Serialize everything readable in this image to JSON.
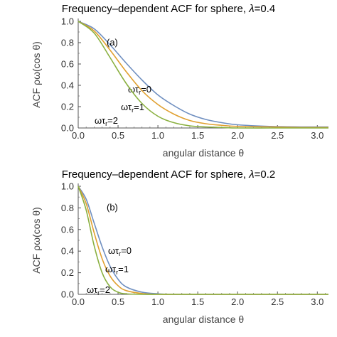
{
  "chart_data": [
    {
      "type": "line",
      "title_prefix": "Frequency–dependent ACF for sphere, ",
      "title_lambda": "λ",
      "title_eq": "=0.4",
      "panel_label": "(a)",
      "xlabel": "angular distance θ",
      "ylabel": "ACF ρω(cos θ)",
      "xlim": [
        0,
        3.14
      ],
      "ylim": [
        0,
        1.0
      ],
      "xticks": [
        "0.0",
        "0.5",
        "1.0",
        "1.5",
        "2.0",
        "2.5",
        "3.0"
      ],
      "yticks": [
        "0.0",
        "0.2",
        "0.4",
        "0.6",
        "0.8",
        "1.0"
      ],
      "x": [
        0,
        0.2,
        0.4,
        0.6,
        0.8,
        1.0,
        1.2,
        1.4,
        1.6,
        1.8,
        2.0,
        2.4,
        2.8,
        3.14
      ],
      "series": [
        {
          "name": "ωτr=0",
          "color": "#6f8fc0",
          "values": [
            1.0,
            0.93,
            0.78,
            0.61,
            0.45,
            0.31,
            0.21,
            0.13,
            0.08,
            0.05,
            0.03,
            0.015,
            0.01,
            0.01
          ]
        },
        {
          "name": "ωτr=1",
          "color": "#e0a030",
          "values": [
            1.0,
            0.91,
            0.73,
            0.53,
            0.35,
            0.22,
            0.13,
            0.07,
            0.04,
            0.025,
            0.015,
            0.01,
            0.005,
            0.005
          ]
        },
        {
          "name": "ωτr=2",
          "color": "#8ab040",
          "values": [
            1.0,
            0.89,
            0.66,
            0.42,
            0.23,
            0.11,
            0.05,
            0.02,
            0.01,
            0.005,
            0.0,
            0.0,
            0.0,
            0.0
          ]
        }
      ]
    },
    {
      "type": "line",
      "title_prefix": "Frequency–dependent ACF for sphere, ",
      "title_lambda": "λ",
      "title_eq": "=0.2",
      "panel_label": "(b)",
      "xlabel": "angular distance θ",
      "ylabel": "ACF ρω(cos θ)",
      "xlim": [
        0,
        3.14
      ],
      "ylim": [
        0,
        1.0
      ],
      "xticks": [
        "0.0",
        "0.5",
        "1.0",
        "1.5",
        "2.0",
        "2.5",
        "3.0"
      ],
      "yticks": [
        "0.0",
        "0.2",
        "0.4",
        "0.6",
        "0.8",
        "1.0"
      ],
      "x": [
        0,
        0.1,
        0.2,
        0.3,
        0.4,
        0.5,
        0.6,
        0.8,
        1.0,
        1.2,
        1.6,
        2.0,
        2.6,
        3.14
      ],
      "series": [
        {
          "name": "ωτr=0",
          "color": "#6f8fc0",
          "values": [
            1.0,
            0.88,
            0.66,
            0.44,
            0.26,
            0.14,
            0.07,
            0.02,
            0.005,
            0.0,
            0.0,
            0.0,
            0.0,
            0.0
          ]
        },
        {
          "name": "ωτr=1",
          "color": "#e0a030",
          "values": [
            1.0,
            0.84,
            0.57,
            0.33,
            0.17,
            0.08,
            0.035,
            0.008,
            0.0,
            0.0,
            0.0,
            0.0,
            0.0,
            0.0
          ]
        },
        {
          "name": "ωτr=2",
          "color": "#8ab040",
          "values": [
            1.0,
            0.78,
            0.45,
            0.2,
            0.07,
            0.02,
            0.005,
            0.0,
            0.0,
            0.0,
            0.0,
            0.0,
            0.0,
            0.0
          ]
        }
      ]
    }
  ]
}
